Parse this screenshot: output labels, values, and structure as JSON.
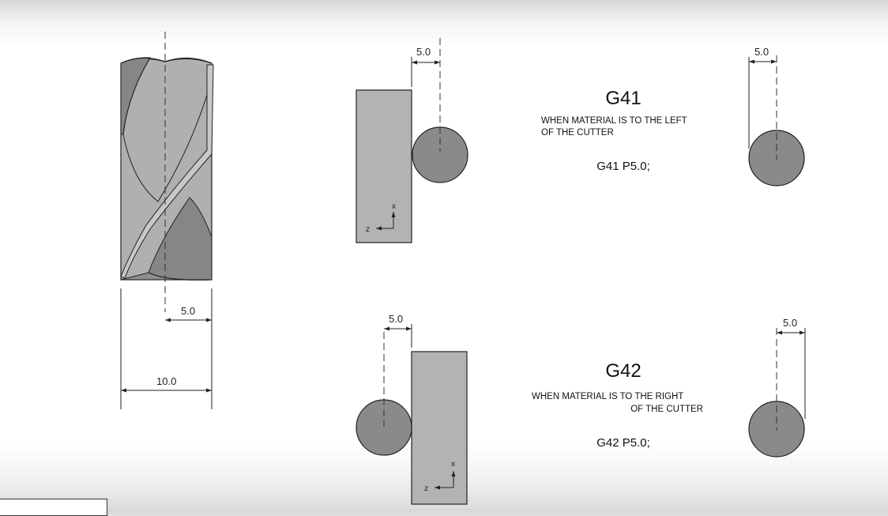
{
  "drill": {
    "dim_radius": "5.0",
    "dim_diameter": "10.0"
  },
  "g41": {
    "title": "G41",
    "desc_line1": "WHEN MATERIAL IS TO THE LEFT",
    "desc_line2": "OF THE CUTTER",
    "code": "G41 P5.0;",
    "offset_dim": "5.0",
    "tool_dim": "5.0",
    "axis_x": "x",
    "axis_z": "z"
  },
  "g42": {
    "title": "G42",
    "desc_line1": "WHEN MATERIAL IS TO THE RIGHT",
    "desc_line2": "OF THE CUTTER",
    "code": "G42 P5.0;",
    "offset_dim": "5.0",
    "tool_dim": "5.0",
    "axis_x": "x",
    "axis_z": "z"
  },
  "colors": {
    "material": "#b3b3b3",
    "cutter": "#8a8a8a",
    "drill_light": "#b0b0b0",
    "drill_dark": "#858585",
    "outline": "#222222"
  }
}
